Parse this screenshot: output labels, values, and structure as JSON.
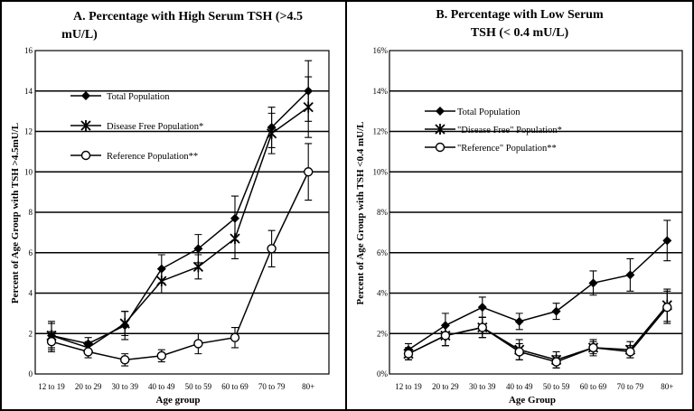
{
  "chart_data": [
    {
      "type": "line",
      "title": "A.  Percentage with High Serum TSH (>4.5",
      "title2": "mU/L)",
      "xlabel": "Age group",
      "ylabel": "Percent of Age Group with TSH >4.5mU/L",
      "categories": [
        "12 to 19",
        "20 to 29",
        "30 to 39",
        "40 to 49",
        "50 to 59",
        "60 to 69",
        "70 to 79",
        "80+"
      ],
      "yticks": [
        "0",
        "2",
        "4",
        "6",
        "8",
        "10",
        "12",
        "14",
        "16"
      ],
      "ylim": [
        0,
        16
      ],
      "grid_lines": [
        2,
        4,
        6,
        8,
        10,
        12,
        14
      ],
      "legend_position": "upper-left",
      "series": [
        {
          "name": "Total Population",
          "marker": "diamond",
          "values": [
            1.9,
            1.5,
            2.4,
            5.2,
            6.2,
            7.7,
            12.2,
            14.0
          ],
          "err": [
            0.7,
            0.3,
            0.7,
            0.7,
            0.7,
            1.1,
            1.0,
            1.5
          ]
        },
        {
          "name": "Disease Free Population*",
          "marker": "asterisk",
          "values": [
            1.9,
            1.3,
            2.5,
            4.6,
            5.3,
            6.7,
            11.9,
            13.2
          ],
          "err": [
            0.6,
            0.3,
            0.6,
            0.6,
            0.6,
            1.0,
            1.0,
            1.5
          ]
        },
        {
          "name": "Reference Population**",
          "marker": "circle",
          "values": [
            1.6,
            1.1,
            0.7,
            0.9,
            1.5,
            1.8,
            6.2,
            10.0
          ],
          "err": [
            0.5,
            0.3,
            0.3,
            0.3,
            0.5,
            0.5,
            0.9,
            1.4
          ]
        }
      ]
    },
    {
      "type": "line",
      "title": "B.  Percentage with Low Serum",
      "title2": "TSH (< 0.4 mU/L)",
      "xlabel": "Age Group",
      "ylabel": "Percent of Age Group with TSH <0.4 mU/L",
      "categories": [
        "12 to 19",
        "20 to 29",
        "30 to 39",
        "40 to 49",
        "50 to 59",
        "60 to 69",
        "70 to 79",
        "80+"
      ],
      "yticks": [
        "0%",
        "2%",
        "4%",
        "6%",
        "8%",
        "10%",
        "12%",
        "14%",
        "16%"
      ],
      "ylim": [
        0,
        16
      ],
      "grid_lines": [
        2,
        4,
        6,
        8,
        10,
        12,
        14
      ],
      "legend_position": "upper-left",
      "series": [
        {
          "name": "Total Population",
          "marker": "diamond",
          "values": [
            1.2,
            2.4,
            3.3,
            2.6,
            3.1,
            4.5,
            4.9,
            6.6
          ],
          "err": [
            0.3,
            0.6,
            0.5,
            0.4,
            0.4,
            0.6,
            0.8,
            1.0
          ]
        },
        {
          "name": "\"Disease Free\" Population*",
          "marker": "asterisk",
          "values": [
            1.0,
            1.9,
            2.3,
            1.2,
            0.7,
            1.3,
            1.2,
            3.4
          ],
          "err": [
            0.3,
            0.5,
            0.5,
            0.5,
            0.4,
            0.4,
            0.4,
            0.8
          ]
        },
        {
          "name": "\"Reference\" Population**",
          "marker": "circle",
          "values": [
            1.0,
            1.9,
            2.3,
            1.1,
            0.6,
            1.3,
            1.1,
            3.3
          ],
          "err": [
            0.3,
            0.5,
            0.5,
            0.4,
            0.3,
            0.3,
            0.3,
            0.8
          ]
        }
      ]
    }
  ]
}
